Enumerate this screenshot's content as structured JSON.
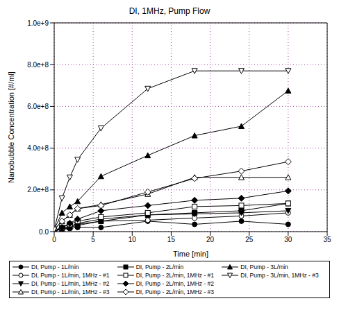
{
  "chart_data": {
    "type": "line",
    "title": "DI, 1MHz, Pump Flow",
    "x_label": "Time [min]",
    "y_label": "Nanobubble Concentration [#/ml]",
    "x": [
      0,
      1,
      2,
      3,
      6,
      12,
      18,
      24,
      30
    ],
    "xlim": [
      0,
      35
    ],
    "xticks": [
      0,
      5,
      10,
      15,
      20,
      25,
      30,
      35
    ],
    "ylim": [
      0,
      1000000000
    ],
    "yticks": [
      {
        "value": 0,
        "label": "0.0"
      },
      {
        "value": 200000000,
        "label": "2.0e+8"
      },
      {
        "value": 400000000,
        "label": "4.0e+8"
      },
      {
        "value": 600000000,
        "label": "6.0e+8"
      },
      {
        "value": 800000000,
        "label": "8.0e+8"
      },
      {
        "value": 1000000000,
        "label": "1.0e+9"
      }
    ],
    "grid": true,
    "legend": "bottom",
    "series": [
      {
        "name": "DI, Pump - 1L/min",
        "color": "#000000",
        "marker": "circle",
        "values": [
          5000000,
          10000000,
          15000000,
          20000000,
          20000000,
          50000000,
          35000000,
          50000000,
          35000000
        ]
      },
      {
        "name": "DI, Pump - 1L/min, 1MHz - #1",
        "color": "#000000",
        "marker": "circle-open",
        "values": [
          5000000,
          15000000,
          25000000,
          35000000,
          50000000,
          55000000,
          65000000,
          75000000,
          90000000
        ]
      },
      {
        "name": "DI, Pump - 1L/min, 1MHz - #2",
        "color": "#000000",
        "marker": "triangle-down",
        "values": [
          5000000,
          15000000,
          25000000,
          40000000,
          60000000,
          80000000,
          85000000,
          90000000,
          100000000
        ]
      },
      {
        "name": "DI, Pump - 1L/min, 1MHz - #3",
        "color": "#000000",
        "marker": "triangle-up-open",
        "values": [
          10000000,
          50000000,
          80000000,
          110000000,
          130000000,
          180000000,
          260000000,
          260000000,
          260000000
        ]
      },
      {
        "name": "DI, Pump - 2L/min",
        "color": "#000000",
        "marker": "square",
        "values": [
          5000000,
          10000000,
          20000000,
          30000000,
          50000000,
          80000000,
          90000000,
          100000000,
          135000000
        ]
      },
      {
        "name": "DI, Pump - 2L/min, 1MHz - #1",
        "color": "#000000",
        "marker": "square-open",
        "values": [
          5000000,
          20000000,
          35000000,
          50000000,
          70000000,
          90000000,
          120000000,
          125000000,
          135000000
        ]
      },
      {
        "name": "DI, Pump - 2L/min, 1MHz - #2",
        "color": "#000000",
        "marker": "diamond",
        "values": [
          5000000,
          20000000,
          40000000,
          60000000,
          100000000,
          125000000,
          150000000,
          160000000,
          195000000
        ]
      },
      {
        "name": "DI, Pump - 2L/min, 1MHz - #3",
        "color": "#000000",
        "marker": "diamond-open",
        "values": [
          10000000,
          50000000,
          80000000,
          110000000,
          125000000,
          190000000,
          255000000,
          290000000,
          335000000
        ]
      },
      {
        "name": "DI, Pump - 3L/min",
        "color": "#000000",
        "marker": "triangle-up",
        "values": [
          10000000,
          90000000,
          120000000,
          145000000,
          265000000,
          365000000,
          460000000,
          505000000,
          675000000
        ]
      },
      {
        "name": "DI, Pump - 3L/min, 1MHz - #3",
        "color": "#000000",
        "marker": "triangle-down-open",
        "values": [
          10000000,
          160000000,
          260000000,
          345000000,
          495000000,
          685000000,
          770000000,
          770000000,
          770000000
        ]
      }
    ]
  }
}
